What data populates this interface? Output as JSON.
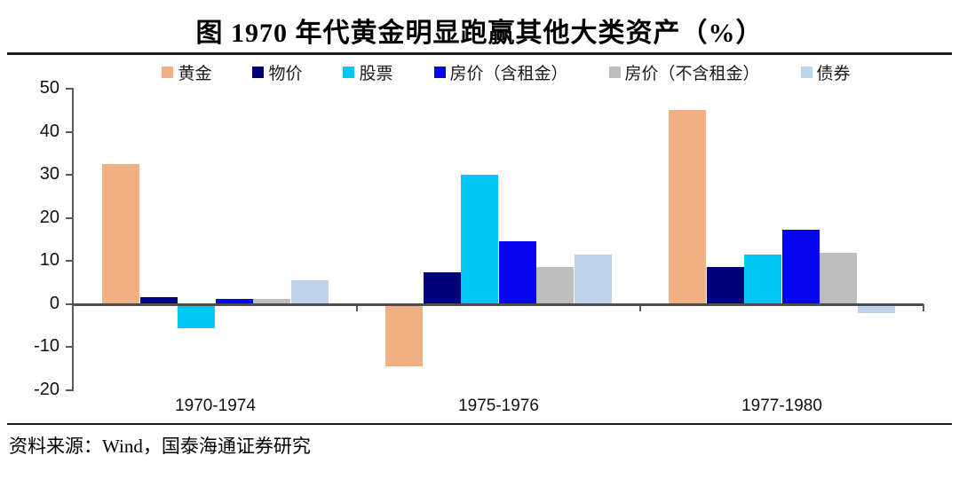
{
  "title": "图 1970 年代黄金明显跑赢其他大类资产（%）",
  "source": "资料来源：Wind，国泰海通证券研究",
  "chart_data": {
    "type": "bar",
    "title": "图 1970 年代黄金明显跑赢其他大类资产（%）",
    "categories": [
      "1970-1974",
      "1975-1976",
      "1977-1980"
    ],
    "series": [
      {
        "name": "黄金",
        "color": "#F0B083",
        "values": [
          32.5,
          -14.5,
          45.0
        ]
      },
      {
        "name": "物价",
        "color": "#000078",
        "values": [
          1.7,
          7.3,
          8.6
        ]
      },
      {
        "name": "股票",
        "color": "#00C8F5",
        "values": [
          -5.5,
          30.0,
          11.5
        ]
      },
      {
        "name": "房价（含租金）",
        "color": "#0505F0",
        "values": [
          1.2,
          14.5,
          17.2
        ]
      },
      {
        "name": "房价（不含租金）",
        "color": "#BDBDBD",
        "values": [
          1.2,
          8.7,
          12.0
        ]
      },
      {
        "name": "债券",
        "color": "#BCD3EA",
        "values": [
          5.5,
          11.5,
          -2.0
        ]
      }
    ],
    "xlabel": "",
    "ylabel": "",
    "ylim": [
      -20,
      50
    ],
    "yticks": [
      50,
      40,
      30,
      20,
      10,
      0,
      -10,
      -20
    ],
    "grid": false,
    "legend_position": "top"
  }
}
